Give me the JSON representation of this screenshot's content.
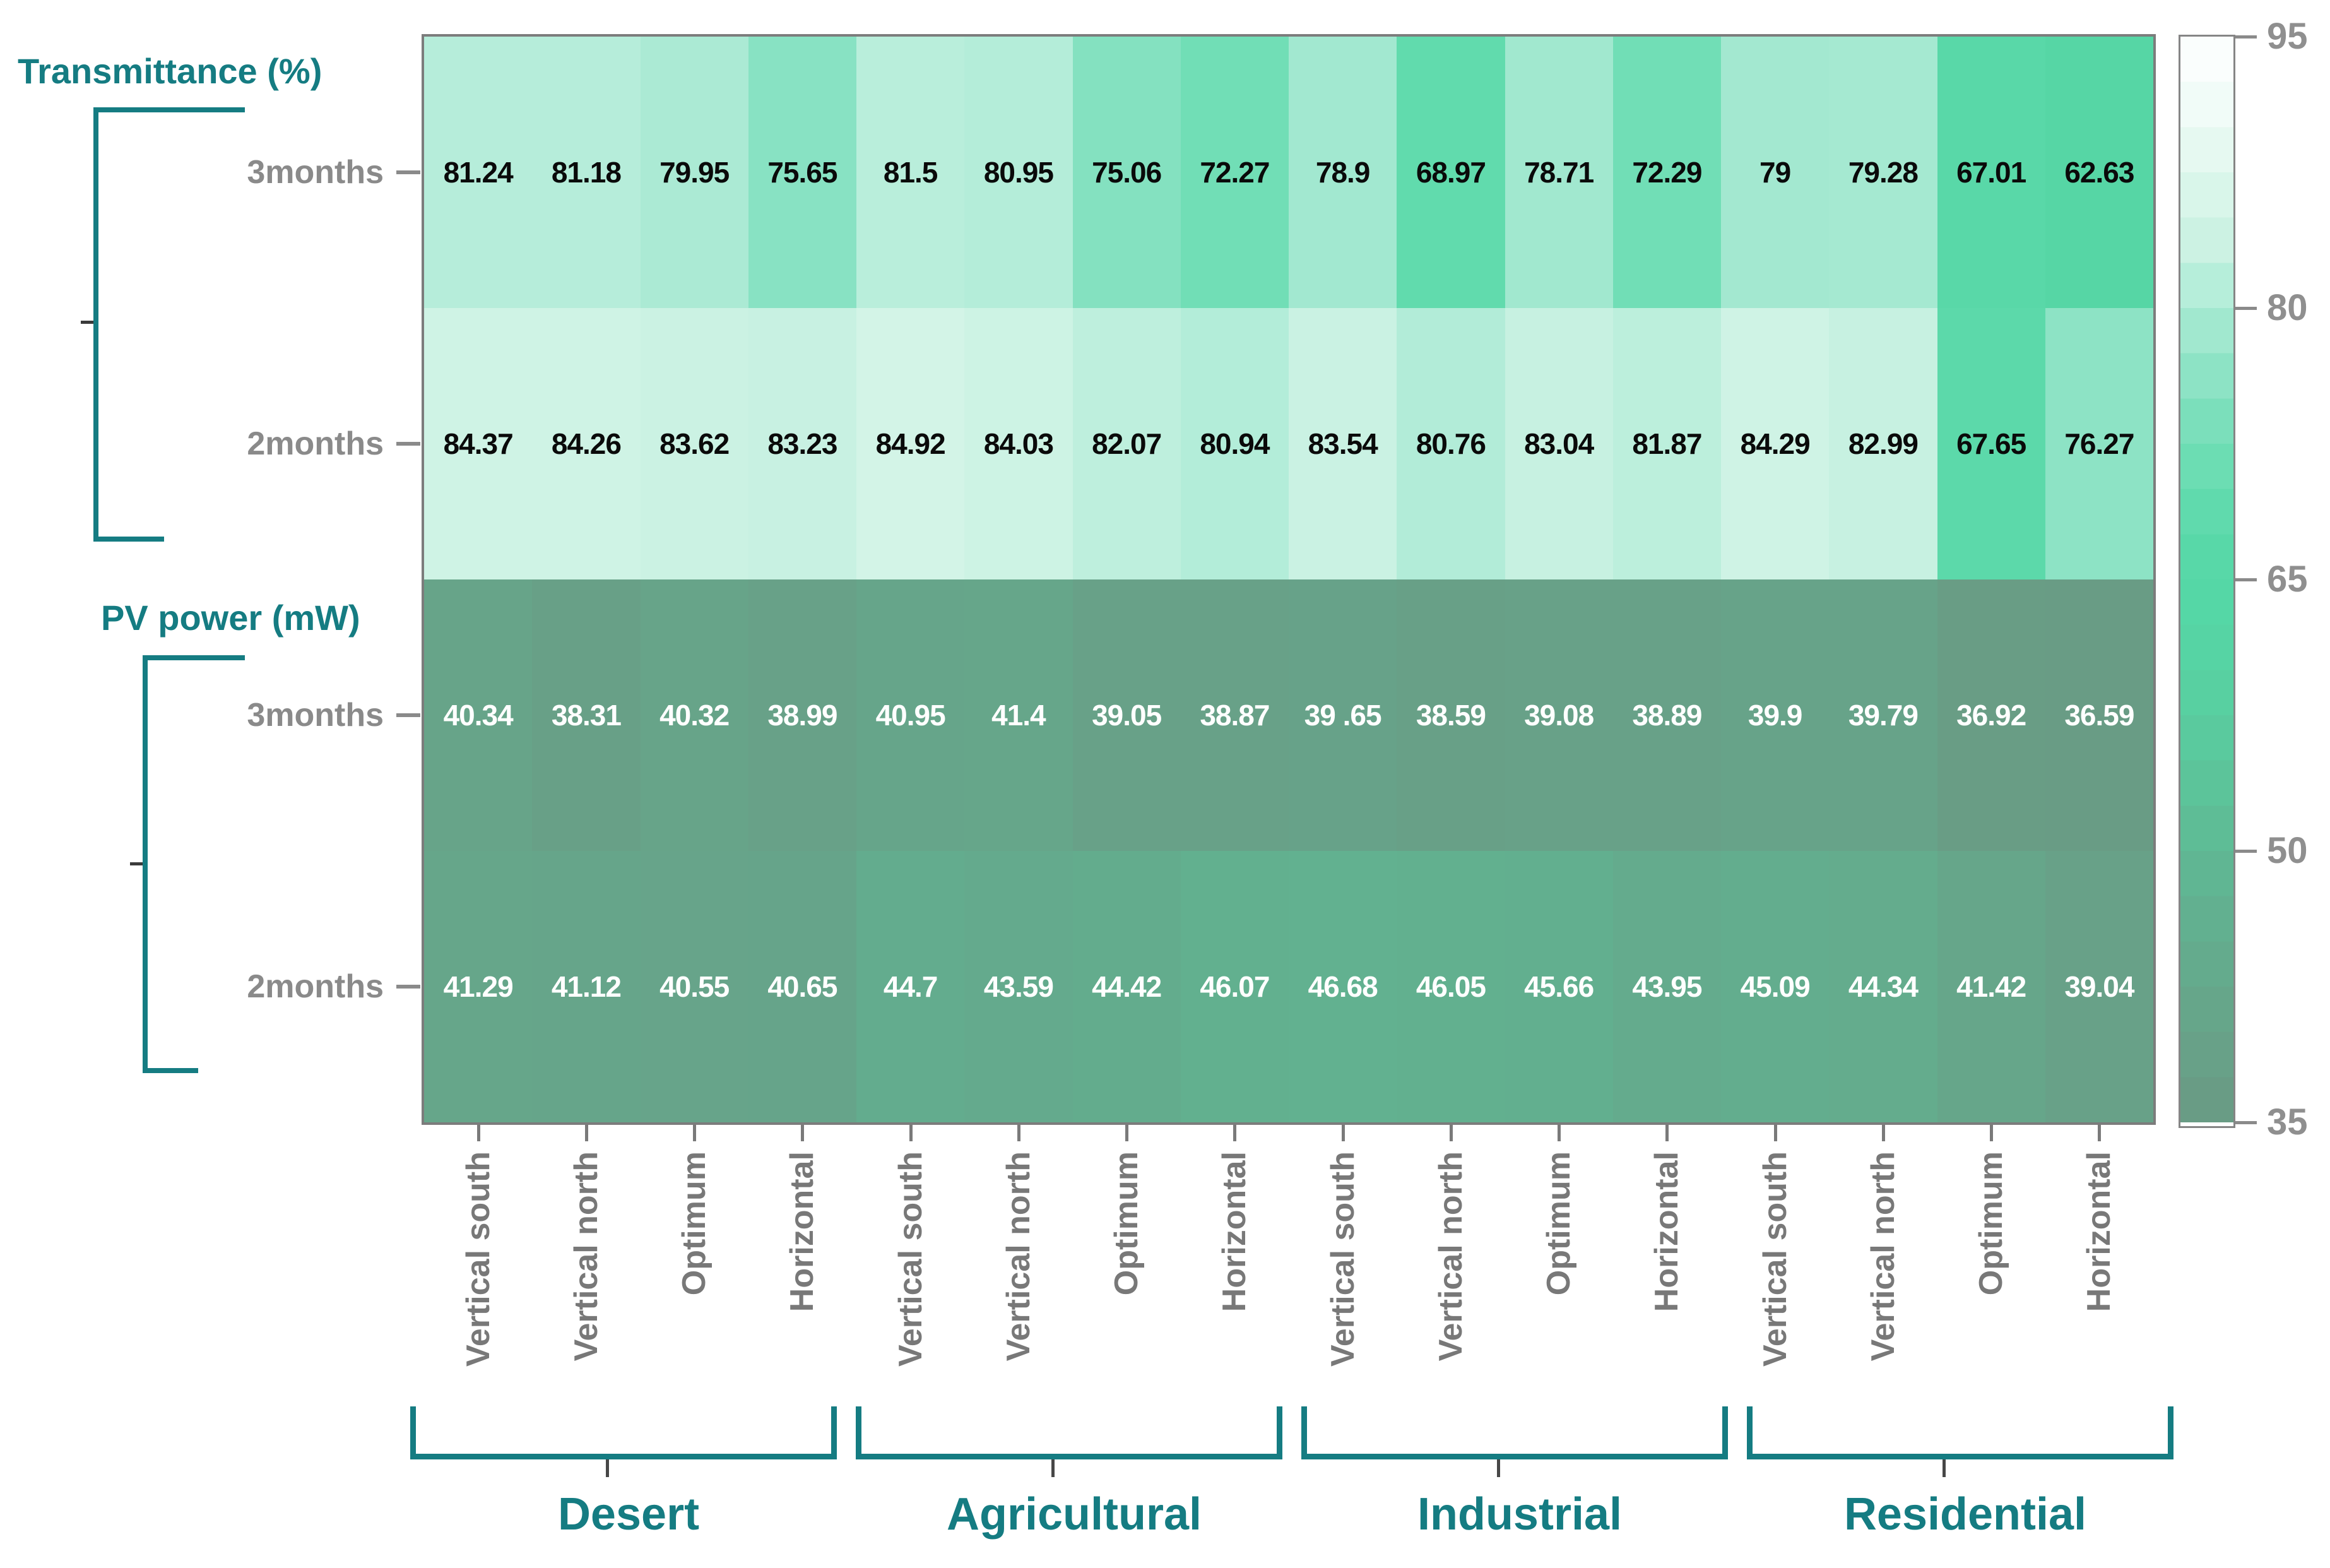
{
  "colors": {
    "teal": "#157c82",
    "axis_label_gray": "#8a8a8a",
    "x_label_gray": "#787878",
    "tick_gray": "#7a7a7a",
    "colorbar_label_gray": "#8f8f8f",
    "frame_border_gray": "#7c7c7c",
    "cell_text_dark": "#0a0a0a",
    "cell_text_light": "#ffffff",
    "colormap_stops": [
      [
        35,
        "#6a9983"
      ],
      [
        40,
        "#67a389"
      ],
      [
        45,
        "#63ad8e"
      ],
      [
        50,
        "#5fb994"
      ],
      [
        55,
        "#5bc79c"
      ],
      [
        60,
        "#57d3a3"
      ],
      [
        64,
        "#55d7a6"
      ],
      [
        67,
        "#59d8a8"
      ],
      [
        70,
        "#65dcb0"
      ],
      [
        73,
        "#75deb8"
      ],
      [
        76,
        "#8be3c4"
      ],
      [
        79,
        "#a3e8d0"
      ],
      [
        81,
        "#b4edd9"
      ],
      [
        83,
        "#c7f1e1"
      ],
      [
        85,
        "#d3f4e7"
      ],
      [
        88,
        "#e2f8ef"
      ],
      [
        91,
        "#f0fcf7"
      ],
      [
        95,
        "#ffffff"
      ]
    ]
  },
  "chart_data": {
    "type": "heatmap",
    "title": "",
    "sections": [
      {
        "label": "Transmittance (%)"
      },
      {
        "label": "PV power (mW)"
      }
    ],
    "groups": [
      {
        "label": "Desert"
      },
      {
        "label": "Agricultural"
      },
      {
        "label": "Industrial"
      },
      {
        "label": "Residential"
      }
    ],
    "orientations": [
      "Vertical south",
      "Vertical north",
      "Optimum",
      "Horizontal"
    ],
    "rows": [
      {
        "section": "Transmittance (%)",
        "period": "3months",
        "text_color": "dark",
        "labels": [
          "81.24",
          "81.18",
          "79.95",
          "75.65",
          "81.5",
          "80.95",
          "75.06",
          "72.27",
          "78.9",
          "68.97",
          "78.71",
          "72.29",
          "79",
          "79.28",
          "67.01",
          "62.63"
        ],
        "values": [
          81.24,
          81.18,
          79.95,
          75.65,
          81.5,
          80.95,
          75.06,
          72.27,
          78.9,
          68.97,
          78.71,
          72.29,
          79,
          79.28,
          67.01,
          62.63
        ]
      },
      {
        "section": "Transmittance (%)",
        "period": "2months",
        "text_color": "dark",
        "labels": [
          "84.37",
          "84.26",
          "83.62",
          "83.23",
          "84.92",
          "84.03",
          "82.07",
          "80.94",
          "83.54",
          "80.76",
          "83.04",
          "81.87",
          "84.29",
          "82.99",
          "67.65",
          "76.27"
        ],
        "values": [
          84.37,
          84.26,
          83.62,
          83.23,
          84.92,
          84.03,
          82.07,
          80.94,
          83.54,
          80.76,
          83.04,
          81.87,
          84.29,
          82.99,
          67.65,
          76.27
        ]
      },
      {
        "section": "PV power (mW)",
        "period": "3months",
        "text_color": "light",
        "labels": [
          "40.34",
          "38.31",
          "40.32",
          "38.99",
          "40.95",
          "41.4",
          "39.05",
          "38.87",
          "39 .65",
          "38.59",
          "39.08",
          "38.89",
          "39.9",
          "39.79",
          "36.92",
          "36.59"
        ],
        "values": [
          40.34,
          38.31,
          40.32,
          38.99,
          40.95,
          41.4,
          39.05,
          38.87,
          39.65,
          38.59,
          39.08,
          38.89,
          39.9,
          39.79,
          36.92,
          36.59
        ]
      },
      {
        "section": "PV power (mW)",
        "period": "2months",
        "text_color": "light",
        "labels": [
          "41.29",
          "41.12",
          "40.55",
          "40.65",
          "44.7",
          "43.59",
          "44.42",
          "46.07",
          "46.68",
          "46.05",
          "45.66",
          "43.95",
          "45.09",
          "44.34",
          "41.42",
          "39.04"
        ],
        "values": [
          41.29,
          41.12,
          40.55,
          40.65,
          44.7,
          43.59,
          44.42,
          46.07,
          46.68,
          46.05,
          45.66,
          43.95,
          45.09,
          44.34,
          41.42,
          39.04
        ]
      }
    ],
    "colorbar": {
      "min": 35,
      "max": 95,
      "tick_values": [
        95,
        80,
        65,
        50,
        35
      ],
      "tick_labels": [
        "95",
        "80",
        "65",
        "50",
        "35"
      ],
      "position": "right"
    },
    "grid": false,
    "x_axis_label": "",
    "y_axis_label": ""
  }
}
